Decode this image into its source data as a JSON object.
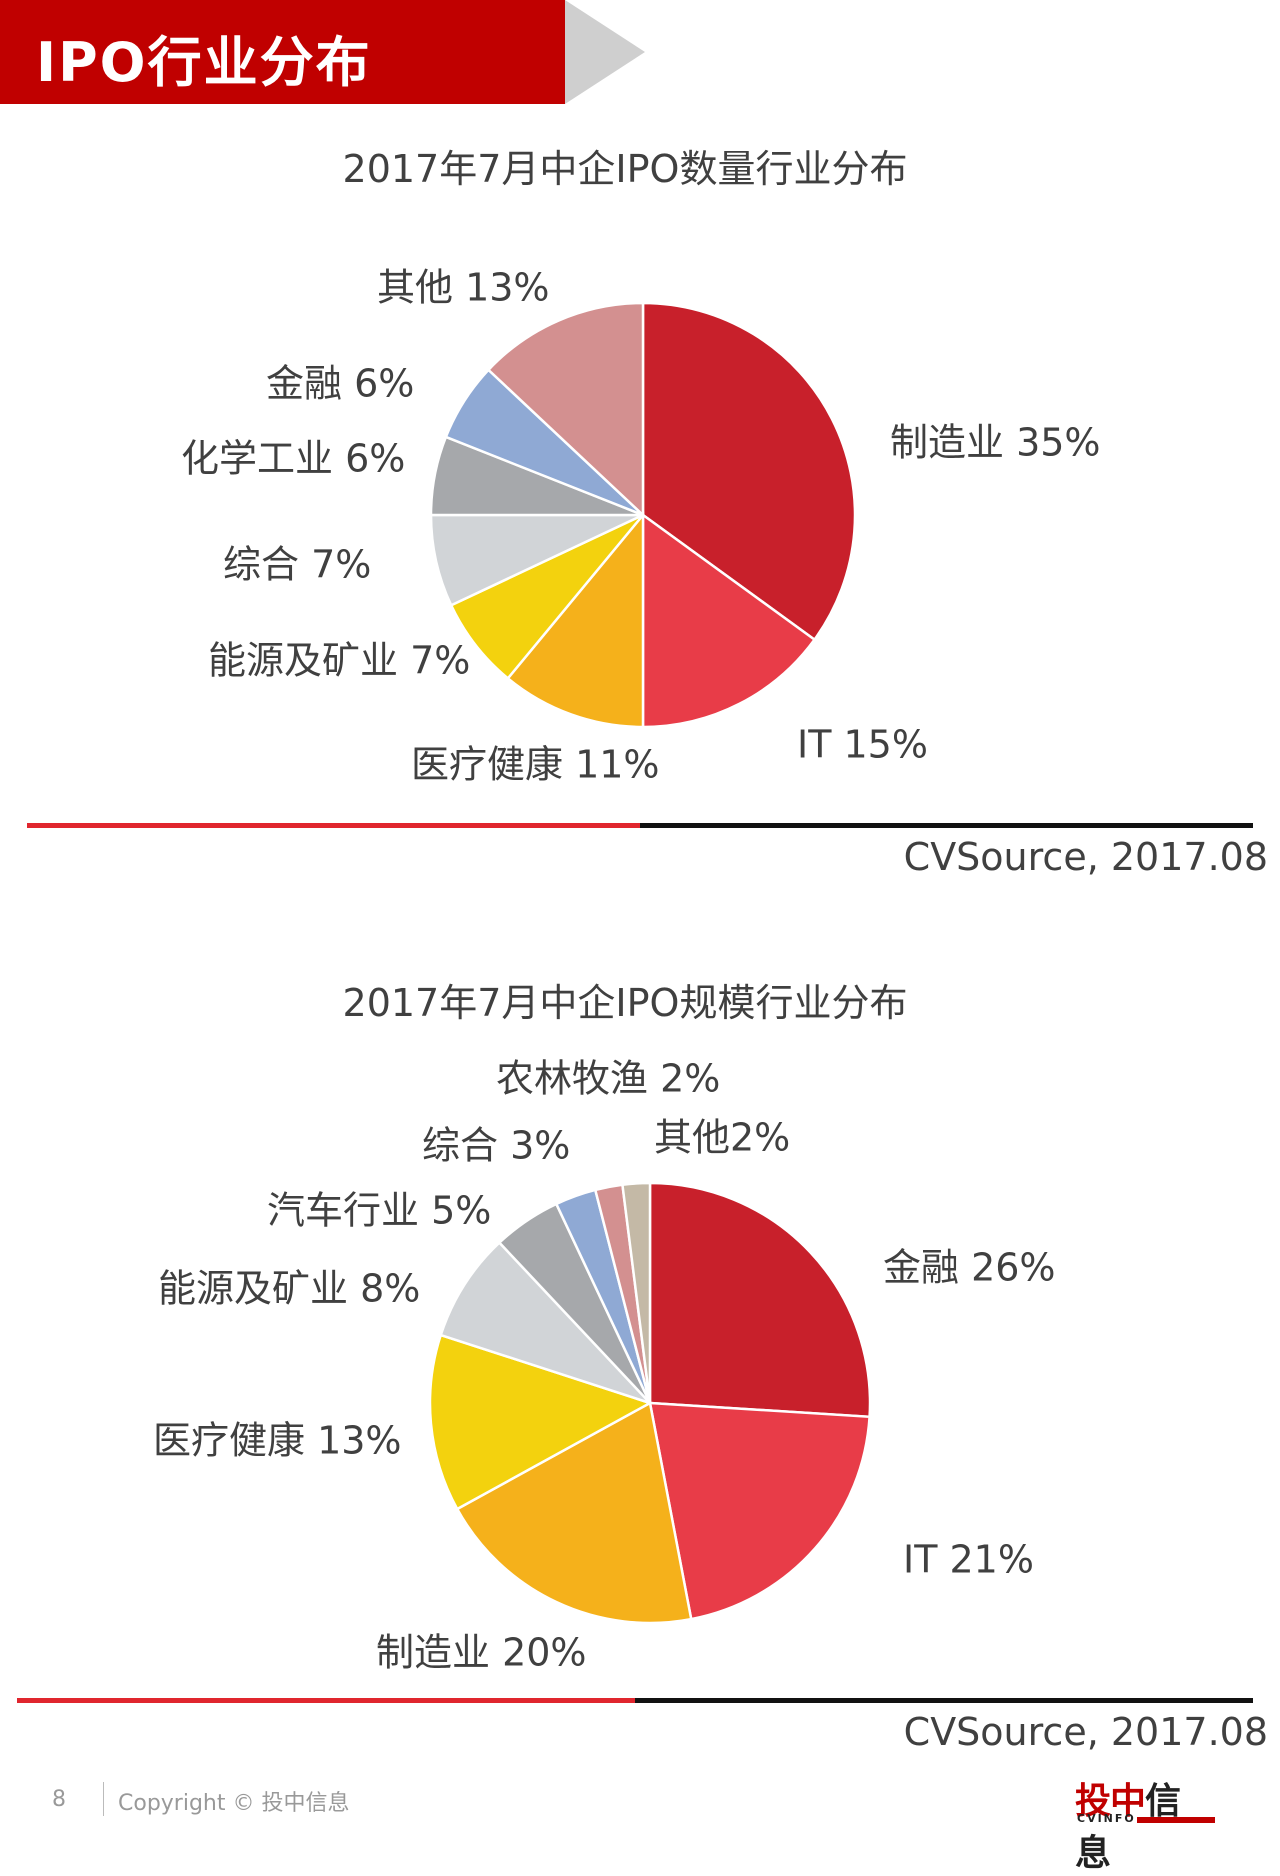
{
  "header": {
    "title": "IPO行业分布"
  },
  "charts": [
    {
      "title": "2017年7月中企IPO数量行业分布",
      "source": "CVSource, 2017.08"
    },
    {
      "title": "2017年7月中企IPO规模行业分布",
      "source": "CVSource, 2017.08"
    }
  ],
  "chart_data": [
    {
      "type": "pie",
      "title": "2017年7月中企IPO数量行业分布",
      "slices": [
        {
          "label": "制造业 35%",
          "value": 35,
          "color": "#c8202b"
        },
        {
          "label": "IT 15%",
          "value": 15,
          "color": "#e83c48"
        },
        {
          "label": "医疗健康 11%",
          "value": 11,
          "color": "#f5b11b"
        },
        {
          "label": "能源及矿业 7%",
          "value": 7,
          "color": "#f3d20e"
        },
        {
          "label": "综合 7%",
          "value": 7,
          "color": "#d1d4d7"
        },
        {
          "label": "化学工业 6%",
          "value": 6,
          "color": "#a6a8ab"
        },
        {
          "label": "金融 6%",
          "value": 6,
          "color": "#8fa9d4"
        },
        {
          "label": "其他 13%",
          "value": 13,
          "color": "#d39090"
        }
      ]
    },
    {
      "type": "pie",
      "title": "2017年7月中企IPO规模行业分布",
      "slices": [
        {
          "label": "金融 26%",
          "value": 26,
          "color": "#c8202b"
        },
        {
          "label": "IT 21%",
          "value": 21,
          "color": "#e83c48"
        },
        {
          "label": "制造业 20%",
          "value": 20,
          "color": "#f5b11b"
        },
        {
          "label": "医疗健康 13%",
          "value": 13,
          "color": "#f3d20e"
        },
        {
          "label": "能源及矿业 8%",
          "value": 8,
          "color": "#d1d4d7"
        },
        {
          "label": "汽车行业 5%",
          "value": 5,
          "color": "#a6a8ab"
        },
        {
          "label": "综合 3%",
          "value": 3,
          "color": "#8fa9d4"
        },
        {
          "label": "农林牧渔 2%",
          "value": 2,
          "color": "#d39090"
        },
        {
          "label": "其他2%",
          "value": 2,
          "color": "#c4b9a6"
        }
      ]
    }
  ],
  "footer": {
    "page_number": "8",
    "copyright": "Copyright © 投中信息",
    "logo_main_a": "投中",
    "logo_main_b": "信息",
    "logo_sub": "CVINFO"
  },
  "colors": {
    "accent": "#c00000",
    "rule_dark": "#111111"
  }
}
